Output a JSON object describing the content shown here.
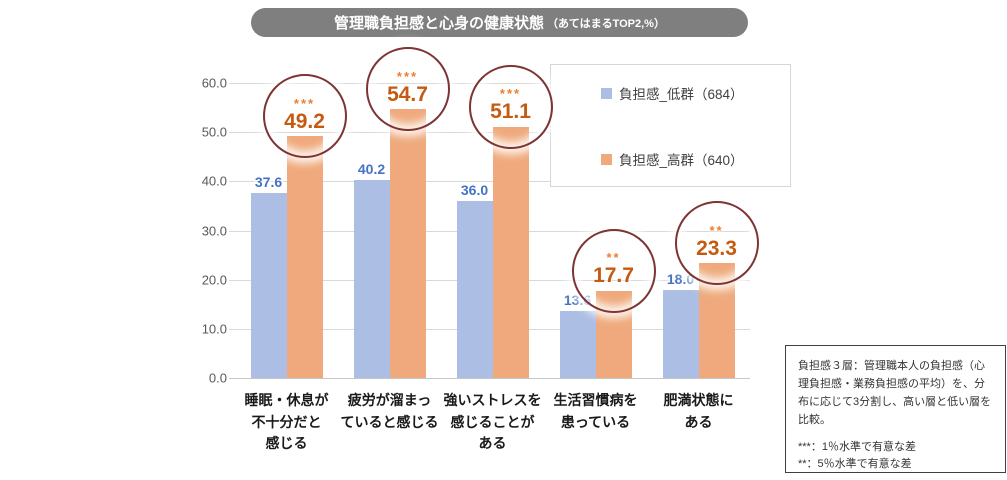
{
  "title": {
    "main": "管理職負担感と心身の健康状態",
    "suffix": "（あてはまるTOP2,%）"
  },
  "chart_data": {
    "type": "bar",
    "title": "管理職負担感と心身の健康状態（あてはまるTOP2,%）",
    "categories": [
      "睡眠・休息が\n不十分だと\n感じる",
      "疲労が溜まっ\nていると感じる",
      "強いストレスを\n感じることが\nある",
      "生活習慣病を\n患っている",
      "肥満状態に\nある"
    ],
    "series": [
      {
        "name": "負担感_低群（684）",
        "values": [
          37.6,
          40.2,
          36.0,
          13.6,
          18.0
        ]
      },
      {
        "name": "負担感_高群（640）",
        "values": [
          49.2,
          54.7,
          51.1,
          17.7,
          23.3
        ]
      }
    ],
    "significance": [
      "***",
      "***",
      "***",
      "**",
      "**"
    ],
    "xlabel": "",
    "ylabel": "",
    "ylim": [
      0,
      60
    ],
    "ytick_step": 10,
    "grid": true,
    "legend_position": "upper right"
  },
  "colors": {
    "bar_low": "#acbee3",
    "bar_high": "#efa97c",
    "label_low": "#4472c4",
    "label_high": "#c55a11",
    "stars": "#ed7d31",
    "circle": "#7d3434",
    "grid": "#d9d9d9",
    "title_bg": "#7f7f7f",
    "axis_text": "#595959"
  },
  "note": {
    "body": "負担感３層：管理職本人の負担感（心理負担感・業務負担感の平均）を、分布に応じて3分割し、高い層と低い層を比較。",
    "sig": "***：1％水準で有意な差\n**：5％水準で有意な差"
  }
}
